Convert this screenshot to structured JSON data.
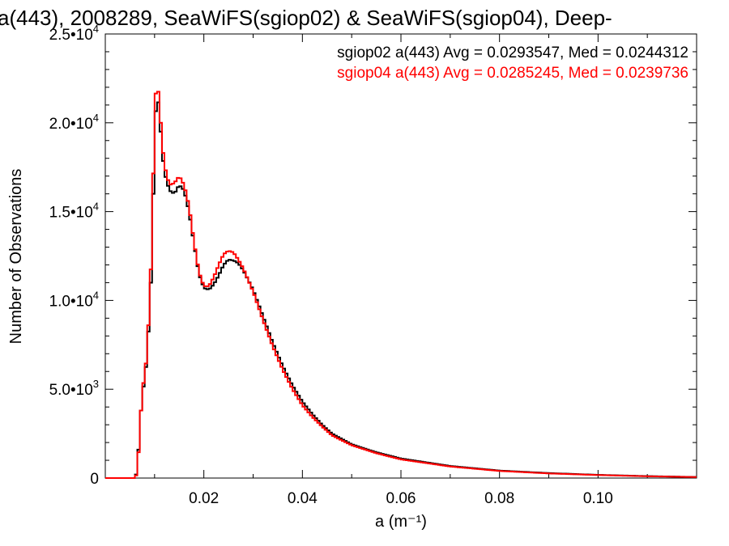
{
  "chart_data": {
    "type": "line",
    "title": "a(443), 2008289, SeaWiFS(sgiop02) & SeaWiFS(sgiop04), Deep-",
    "xlabel": "a (m⁻¹)",
    "ylabel": "Number of Observations",
    "xlim": [
      0.0,
      0.12
    ],
    "ylim": [
      0,
      25000
    ],
    "x_ticks": [
      {
        "value": 0.02,
        "label": "0.02"
      },
      {
        "value": 0.04,
        "label": "0.04"
      },
      {
        "value": 0.06,
        "label": "0.06"
      },
      {
        "value": 0.08,
        "label": "0.08"
      },
      {
        "value": 0.1,
        "label": "0.10"
      }
    ],
    "y_ticks": [
      {
        "value": 0,
        "mantissa": "0",
        "exponent": ""
      },
      {
        "value": 5000,
        "mantissa": "5.0•10",
        "exponent": "3"
      },
      {
        "value": 10000,
        "mantissa": "1.0•10",
        "exponent": "4"
      },
      {
        "value": 15000,
        "mantissa": "1.5•10",
        "exponent": "4"
      },
      {
        "value": 20000,
        "mantissa": "2.0•10",
        "exponent": "4"
      },
      {
        "value": 25000,
        "mantissa": "2.5•10",
        "exponent": "4"
      }
    ],
    "grid": false,
    "legend_position": "top-right",
    "series": [
      {
        "name": "sgiop02 a(443) Avg = 0.0293547, Med = 0.0244312",
        "color": "#000000",
        "points": [
          [
            0.0,
            0
          ],
          [
            0.006,
            0
          ],
          [
            0.0065,
            400
          ],
          [
            0.007,
            2800
          ],
          [
            0.0075,
            4800
          ],
          [
            0.008,
            5500
          ],
          [
            0.0085,
            7000
          ],
          [
            0.009,
            9500
          ],
          [
            0.0095,
            12500
          ],
          [
            0.01,
            19500
          ],
          [
            0.0105,
            21800
          ],
          [
            0.011,
            20500
          ],
          [
            0.0115,
            18500
          ],
          [
            0.012,
            17200
          ],
          [
            0.013,
            16200
          ],
          [
            0.014,
            16000
          ],
          [
            0.015,
            16500
          ],
          [
            0.016,
            16200
          ],
          [
            0.017,
            15000
          ],
          [
            0.018,
            13200
          ],
          [
            0.019,
            11500
          ],
          [
            0.02,
            10700
          ],
          [
            0.021,
            10600
          ],
          [
            0.022,
            10900
          ],
          [
            0.023,
            11400
          ],
          [
            0.024,
            12000
          ],
          [
            0.025,
            12300
          ],
          [
            0.026,
            12250
          ],
          [
            0.027,
            12100
          ],
          [
            0.028,
            11700
          ],
          [
            0.03,
            10600
          ],
          [
            0.032,
            9100
          ],
          [
            0.034,
            7600
          ],
          [
            0.036,
            6300
          ],
          [
            0.038,
            5200
          ],
          [
            0.04,
            4300
          ],
          [
            0.042,
            3600
          ],
          [
            0.044,
            3000
          ],
          [
            0.046,
            2500
          ],
          [
            0.05,
            1900
          ],
          [
            0.055,
            1450
          ],
          [
            0.06,
            1100
          ],
          [
            0.07,
            680
          ],
          [
            0.08,
            420
          ],
          [
            0.09,
            280
          ],
          [
            0.1,
            180
          ],
          [
            0.11,
            110
          ],
          [
            0.12,
            60
          ]
        ]
      },
      {
        "name": "sgiop04 a(443) Avg = 0.0285245, Med = 0.0239736",
        "color": "#ff0000",
        "points": [
          [
            0.0,
            0
          ],
          [
            0.006,
            0
          ],
          [
            0.0065,
            300
          ],
          [
            0.007,
            2600
          ],
          [
            0.0075,
            5000
          ],
          [
            0.008,
            5700
          ],
          [
            0.0085,
            7200
          ],
          [
            0.009,
            10000
          ],
          [
            0.0095,
            13500
          ],
          [
            0.01,
            20800
          ],
          [
            0.0105,
            22500
          ],
          [
            0.011,
            21000
          ],
          [
            0.0115,
            19000
          ],
          [
            0.012,
            17600
          ],
          [
            0.013,
            16500
          ],
          [
            0.014,
            16600
          ],
          [
            0.015,
            17000
          ],
          [
            0.016,
            16500
          ],
          [
            0.017,
            15300
          ],
          [
            0.018,
            13300
          ],
          [
            0.019,
            11600
          ],
          [
            0.02,
            10800
          ],
          [
            0.021,
            10800
          ],
          [
            0.022,
            11300
          ],
          [
            0.023,
            12000
          ],
          [
            0.024,
            12600
          ],
          [
            0.025,
            12800
          ],
          [
            0.026,
            12700
          ],
          [
            0.027,
            12300
          ],
          [
            0.028,
            11800
          ],
          [
            0.03,
            10500
          ],
          [
            0.032,
            8900
          ],
          [
            0.034,
            7400
          ],
          [
            0.036,
            6100
          ],
          [
            0.038,
            5000
          ],
          [
            0.04,
            4100
          ],
          [
            0.042,
            3450
          ],
          [
            0.044,
            2900
          ],
          [
            0.046,
            2400
          ],
          [
            0.05,
            1850
          ],
          [
            0.055,
            1400
          ],
          [
            0.06,
            1050
          ],
          [
            0.07,
            650
          ],
          [
            0.08,
            400
          ],
          [
            0.09,
            260
          ],
          [
            0.1,
            170
          ],
          [
            0.11,
            100
          ],
          [
            0.12,
            55
          ]
        ]
      }
    ]
  }
}
